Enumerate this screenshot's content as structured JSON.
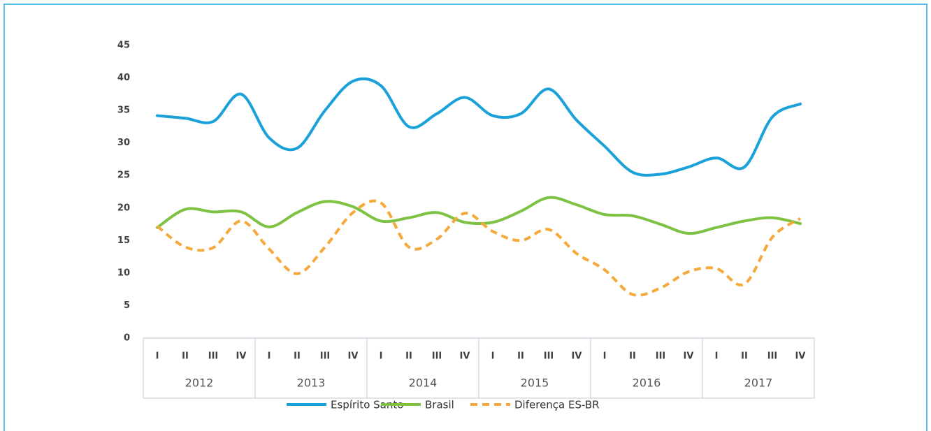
{
  "chart_data": {
    "type": "line",
    "categories": [
      "I",
      "II",
      "III",
      "IV",
      "I",
      "II",
      "III",
      "IV",
      "I",
      "II",
      "III",
      "IV",
      "I",
      "II",
      "III",
      "IV",
      "I",
      "II",
      "III",
      "IV",
      "I",
      "II",
      "III",
      "IV"
    ],
    "category_groups": [
      "2012",
      "2013",
      "2014",
      "2015",
      "2016",
      "2017"
    ],
    "series": [
      {
        "name": "Espírito Santo",
        "color": "#1ba1d9",
        "dashed": false,
        "values": [
          34.2,
          33.8,
          33.3,
          37.5,
          30.8,
          29.2,
          35,
          39.5,
          38.8,
          32.5,
          34.5,
          37,
          34.2,
          34.5,
          38.3,
          33.5,
          29.5,
          25.5,
          25.2,
          26.3,
          27.7,
          26.3,
          34,
          36
        ]
      },
      {
        "name": "Brasil",
        "color": "#7dc242",
        "dashed": false,
        "values": [
          17,
          19.8,
          19.4,
          19.4,
          17.1,
          19.3,
          21,
          20.2,
          18,
          18.5,
          19.3,
          17.8,
          17.8,
          19.5,
          21.6,
          20.5,
          19,
          18.8,
          17.5,
          16.1,
          17,
          18,
          18.5,
          17.6
        ]
      },
      {
        "name": "Diferença ES-BR",
        "color": "#f5a93b",
        "dashed": true,
        "values": [
          17.2,
          14,
          13.9,
          18,
          13.7,
          9.9,
          14,
          19.3,
          20.8,
          14,
          15.2,
          19.2,
          16.4,
          15,
          16.7,
          13,
          10.5,
          6.7,
          7.7,
          10.2,
          10.7,
          8.3,
          15.5,
          18.4
        ]
      }
    ],
    "ylim": [
      0,
      45
    ],
    "yticks": [
      0,
      5,
      10,
      15,
      20,
      25,
      30,
      35,
      40,
      45
    ],
    "grid": false,
    "smooth": true,
    "legend": "bottom"
  }
}
